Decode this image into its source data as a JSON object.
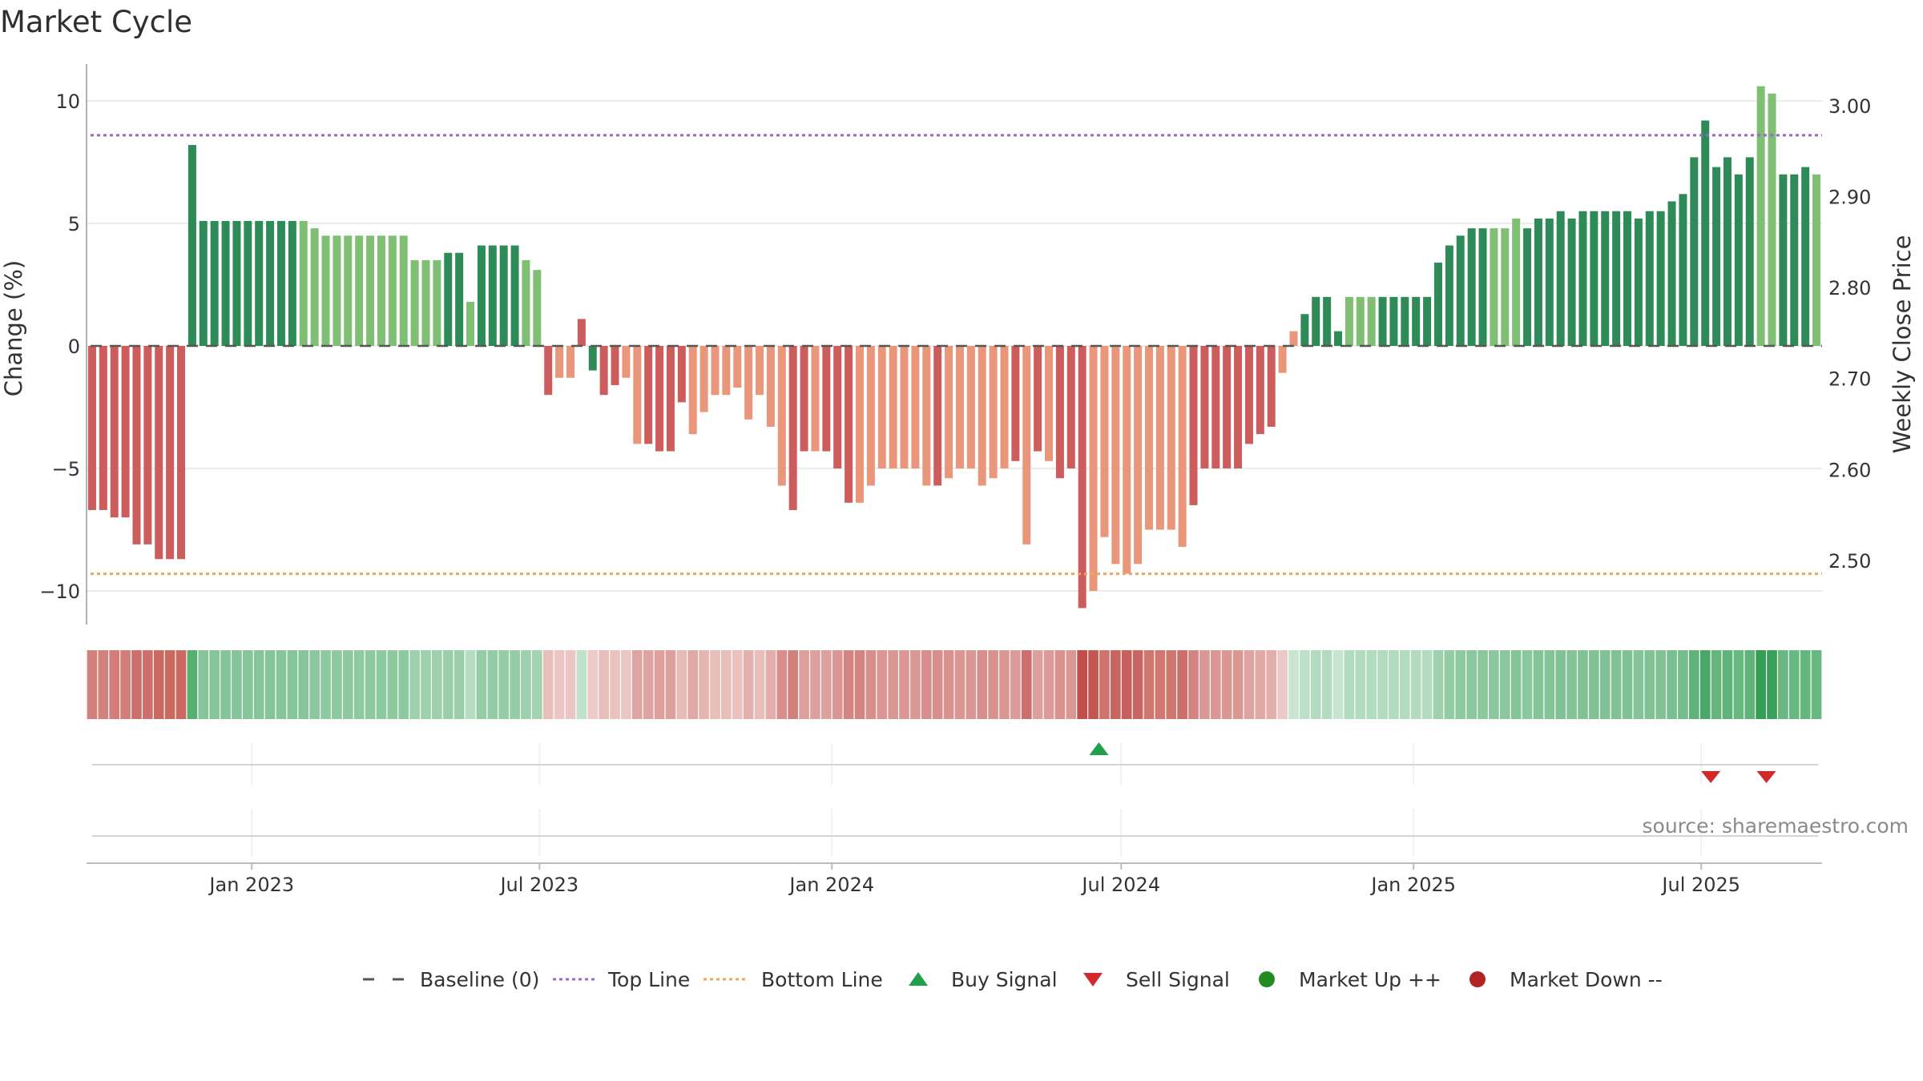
{
  "title": "Market Cycle",
  "source": "source: sharemaestro.com",
  "colors": {
    "up_strong": "#2e8b57",
    "up_light": "#7fbf73",
    "down_strong": "#cd5c5c",
    "down_light": "#e9967a",
    "top_line": "#9966cc",
    "bottom_line": "#f4a460",
    "baseline": "#555555",
    "buy": "#1fa04a",
    "sell": "#d62728",
    "market_up": "#228b22",
    "market_down": "#b22222"
  },
  "chart_data": {
    "type": "bar",
    "title": "Market Cycle",
    "ylabel": "Change (%)",
    "y2label": "Weekly Close Price",
    "ylim": [
      -11.5,
      11.5
    ],
    "yticks": [
      10,
      5,
      0,
      -5,
      -10
    ],
    "ytick_labels": [
      "10",
      "5",
      "0",
      "−5",
      "−10"
    ],
    "y2lim": [
      2.44,
      3.03
    ],
    "y2ticks": [
      3.0,
      2.9,
      2.8,
      2.7,
      2.6,
      2.5
    ],
    "y2tick_labels": [
      "3.00",
      "2.90",
      "2.80",
      "2.70",
      "2.60",
      "2.50"
    ],
    "x_start": "2022-09-19",
    "x_end": "2025-09-15",
    "x_ticks": [
      {
        "date": "2023-01-01",
        "label": "Jan 2023"
      },
      {
        "date": "2023-07-01",
        "label": "Jul 2023"
      },
      {
        "date": "2024-01-01",
        "label": "Jan 2024"
      },
      {
        "date": "2024-07-01",
        "label": "Jul 2024"
      },
      {
        "date": "2025-01-01",
        "label": "Jan 2025"
      },
      {
        "date": "2025-07-01",
        "label": "Jul 2025"
      }
    ],
    "top_line": 8.6,
    "bottom_line": -9.3,
    "baseline": 0,
    "values": [
      -6.7,
      -6.7,
      -7.0,
      -7.0,
      -8.1,
      -8.1,
      -8.7,
      -8.7,
      -8.7,
      8.2,
      5.1,
      5.1,
      5.1,
      5.1,
      5.1,
      5.1,
      5.1,
      5.1,
      5.1,
      5.1,
      4.8,
      4.5,
      4.5,
      4.5,
      4.5,
      4.5,
      4.5,
      4.5,
      4.5,
      3.5,
      3.5,
      3.5,
      3.8,
      3.8,
      1.8,
      4.1,
      4.1,
      4.1,
      4.1,
      3.5,
      3.1,
      -2.0,
      -1.3,
      -1.3,
      1.1,
      -1.0,
      -2.0,
      -1.6,
      -1.3,
      -4.0,
      -4.0,
      -4.3,
      -4.3,
      -2.3,
      -3.6,
      -2.7,
      -2.0,
      -2.0,
      -1.7,
      -3.0,
      -2.0,
      -3.3,
      -5.7,
      -6.7,
      -4.3,
      -4.3,
      -4.3,
      -5.0,
      -6.4,
      -6.4,
      -5.7,
      -5.0,
      -5.0,
      -5.0,
      -5.0,
      -5.7,
      -5.7,
      -5.4,
      -5.0,
      -5.0,
      -5.7,
      -5.4,
      -5.0,
      -4.7,
      -8.1,
      -4.3,
      -4.7,
      -5.4,
      -5.0,
      -10.7,
      -10.0,
      -7.8,
      -8.9,
      -9.3,
      -8.9,
      -7.5,
      -7.5,
      -7.5,
      -8.2,
      -6.5,
      -5.0,
      -5.0,
      -5.0,
      -5.0,
      -4.0,
      -3.6,
      -3.3,
      -1.1,
      0.6,
      1.3,
      2.0,
      2.0,
      0.6,
      2.0,
      2.0,
      2.0,
      2.0,
      2.0,
      2.0,
      2.0,
      2.0,
      3.4,
      4.1,
      4.5,
      4.8,
      4.8,
      4.8,
      4.8,
      5.2,
      4.8,
      5.2,
      5.2,
      5.5,
      5.2,
      5.5,
      5.5,
      5.5,
      5.5,
      5.5,
      5.2,
      5.5,
      5.5,
      5.9,
      6.2,
      7.7,
      9.2,
      7.3,
      7.7,
      7.0,
      7.7,
      10.6,
      10.3,
      7.0,
      7.0,
      7.3,
      7.0
    ],
    "tones": "RRRRRRRRRGGGGGGGGGGLLLLLLLLLLLLLGGLGGGGLLROORGRROORRRROOOOOOOOORRORRROOOOOOOROOOOOORORORRROOOOOOOOORRRRRRRROOGGGGLLLGGGGGGGGGGLLLGGGGGGGGGGGGGGGGGGGGGLLGGGLL",
    "signals": [
      {
        "type": "buy",
        "date": "2024-06-17"
      },
      {
        "type": "sell",
        "date": "2025-07-07"
      },
      {
        "type": "sell",
        "date": "2025-08-11"
      }
    ],
    "legend": [
      "Baseline (0)",
      "Top Line",
      "Bottom Line",
      "Buy Signal",
      "Sell Signal",
      "Market Up ++",
      "Market Down --"
    ]
  }
}
